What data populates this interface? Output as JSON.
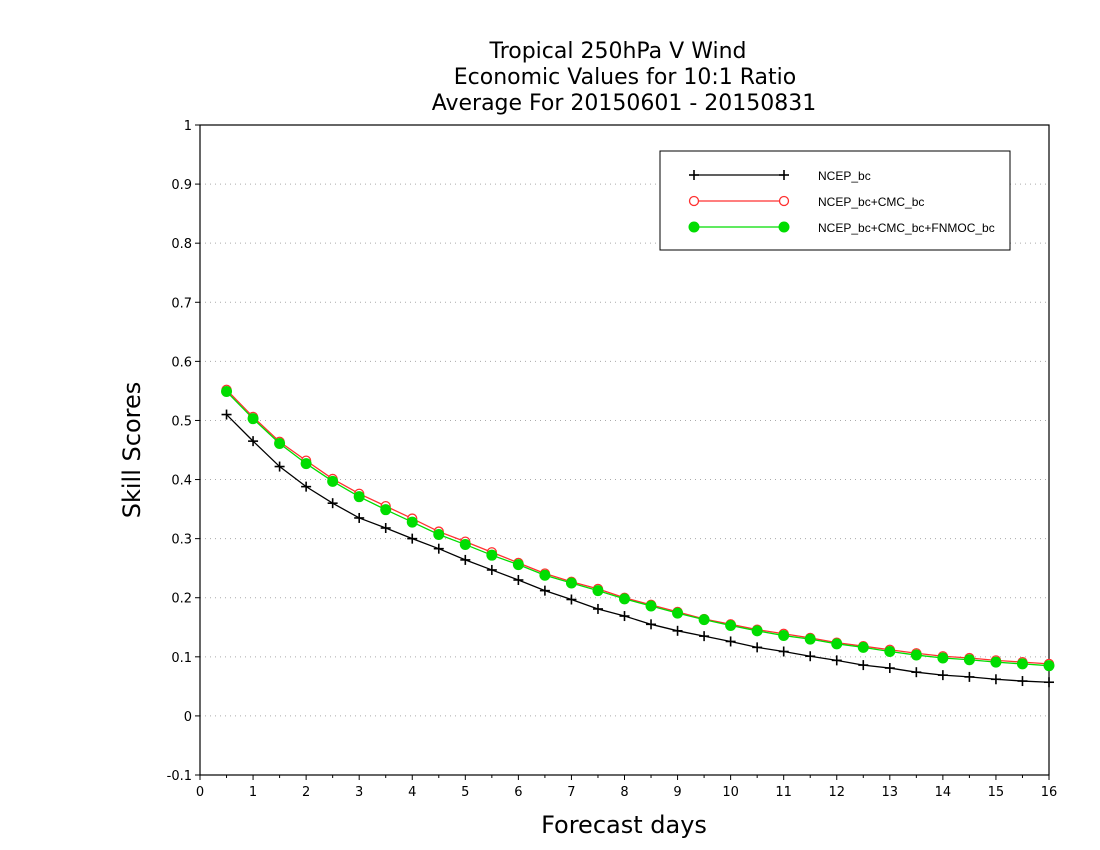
{
  "chart_data": {
    "type": "line",
    "title_lines": [
      "Tropical 250hPa V Wind",
      "Economic Values for 10:1 Ratio",
      "Average For 20150601 - 20150831"
    ],
    "xlabel": "Forecast days",
    "ylabel": "Skill Scores",
    "xlim": [
      0,
      16
    ],
    "ylim": [
      -0.1,
      1
    ],
    "x_ticks": [
      0,
      1,
      2,
      3,
      4,
      5,
      6,
      7,
      8,
      9,
      10,
      11,
      12,
      13,
      14,
      15,
      16
    ],
    "x_tick_labels": [
      "0",
      "1",
      "2",
      "3",
      "4",
      "5",
      "6",
      "7",
      "8",
      "9",
      "10",
      "11",
      "12",
      "13",
      "14",
      "15",
      "16"
    ],
    "y_ticks": [
      -0.1,
      0,
      0.1,
      0.2,
      0.3,
      0.4,
      0.5,
      0.6,
      0.7,
      0.8,
      0.9,
      1
    ],
    "y_tick_labels": [
      "-0.1",
      "0",
      "0.1",
      "0.2",
      "0.3",
      "0.4",
      "0.5",
      "0.6",
      "0.7",
      "0.8",
      "0.9",
      "1"
    ],
    "grid": "horizontal dotted",
    "legend_position": "top-right",
    "x": [
      0.5,
      1,
      1.5,
      2,
      2.5,
      3,
      3.5,
      4,
      4.5,
      5,
      5.5,
      6,
      6.5,
      7,
      7.5,
      8,
      8.5,
      9,
      9.5,
      10,
      10.5,
      11,
      11.5,
      12,
      12.5,
      13,
      13.5,
      14,
      14.5,
      15,
      15.5,
      16
    ],
    "series": [
      {
        "name": "NCEP_bc",
        "color": "#000000",
        "marker": "plus",
        "values": [
          0.51,
          0.465,
          0.422,
          0.388,
          0.36,
          0.335,
          0.318,
          0.3,
          0.283,
          0.264,
          0.247,
          0.23,
          0.212,
          0.197,
          0.181,
          0.169,
          0.155,
          0.144,
          0.135,
          0.126,
          0.116,
          0.109,
          0.101,
          0.094,
          0.086,
          0.081,
          0.074,
          0.069,
          0.066,
          0.062,
          0.059,
          0.057
        ]
      },
      {
        "name": "NCEP_bc+CMC_bc",
        "color": "#ff3030",
        "marker": "open-circle",
        "values": [
          0.552,
          0.506,
          0.464,
          0.432,
          0.401,
          0.376,
          0.355,
          0.334,
          0.312,
          0.295,
          0.277,
          0.259,
          0.241,
          0.227,
          0.215,
          0.2,
          0.188,
          0.176,
          0.164,
          0.155,
          0.146,
          0.139,
          0.132,
          0.124,
          0.118,
          0.112,
          0.106,
          0.101,
          0.098,
          0.094,
          0.091,
          0.088
        ]
      },
      {
        "name": "NCEP_bc+CMC_bc+FNMOC_bc",
        "color": "#00dd00",
        "marker": "filled-circle",
        "values": [
          0.549,
          0.503,
          0.461,
          0.427,
          0.397,
          0.371,
          0.349,
          0.328,
          0.307,
          0.29,
          0.272,
          0.256,
          0.238,
          0.225,
          0.212,
          0.198,
          0.186,
          0.174,
          0.163,
          0.153,
          0.144,
          0.136,
          0.13,
          0.122,
          0.116,
          0.109,
          0.103,
          0.098,
          0.095,
          0.091,
          0.088,
          0.085
        ]
      }
    ]
  }
}
